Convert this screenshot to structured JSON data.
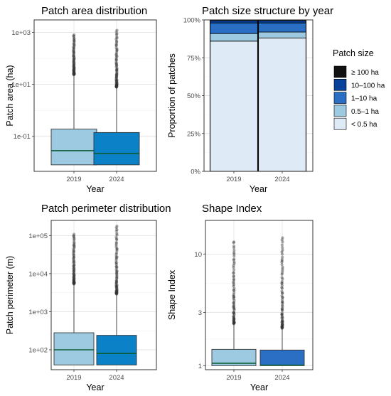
{
  "chart_data": [
    {
      "id": "area",
      "type": "box",
      "title": "Patch area distribution",
      "xlabel": "Year",
      "ylabel": "Patch area (ha)",
      "scale": "log10",
      "ylim": [
        0.0045,
        3000
      ],
      "yticks": [
        0.1,
        10,
        1000
      ],
      "yticklabels": [
        "1e-01",
        "1e+01",
        "1e+03"
      ],
      "categories": [
        "2019",
        "2024"
      ],
      "colors": [
        "#9ecae1",
        "#0b82c8"
      ],
      "boxes": [
        {
          "lower_whisker": 0.008,
          "q1": 0.008,
          "median": 0.028,
          "q3": 0.19,
          "upper_whisker": 24,
          "outlier_range": [
            24,
            800
          ]
        },
        {
          "lower_whisker": 0.008,
          "q1": 0.008,
          "median": 0.022,
          "q3": 0.14,
          "upper_whisker": 8,
          "outlier_range": [
            8,
            1200
          ]
        }
      ]
    },
    {
      "id": "structure",
      "type": "bar",
      "stacked": true,
      "title": "Patch size structure by year",
      "xlabel": "Year",
      "ylabel": "Proportion of patches",
      "ylim": [
        0,
        1
      ],
      "yticks": [
        0,
        0.25,
        0.5,
        0.75,
        1
      ],
      "yticklabels": [
        "0%",
        "25%",
        "50%",
        "75%",
        "100%"
      ],
      "categories": [
        "2019",
        "2024"
      ],
      "legend": {
        "title": "Patch size",
        "position": "right"
      },
      "series": [
        {
          "name": "< 0.5 ha",
          "color": "#deebf7",
          "values": [
            0.86,
            0.88
          ]
        },
        {
          "name": "0.5–1 ha",
          "color": "#9ecae1",
          "values": [
            0.05,
            0.04
          ]
        },
        {
          "name": "1–10 ha",
          "color": "#2a6fc4",
          "values": [
            0.07,
            0.06
          ]
        },
        {
          "name": "10–100 ha",
          "color": "#08419b",
          "values": [
            0.015,
            0.015
          ]
        },
        {
          "name": "≥ 100 ha",
          "color": "#111111",
          "values": [
            0.005,
            0.005
          ]
        }
      ]
    },
    {
      "id": "perimeter",
      "type": "box",
      "title": "Patch perimeter distribution",
      "xlabel": "Year",
      "ylabel": "Patch perimeter (m)",
      "scale": "log10",
      "ylim": [
        30,
        250000
      ],
      "yticks": [
        100,
        1000,
        10000,
        100000
      ],
      "yticklabels": [
        "1e+02",
        "1e+03",
        "1e+04",
        "1e+05"
      ],
      "categories": [
        "2019",
        "2024"
      ],
      "colors": [
        "#9ecae1",
        "#0b82c8"
      ],
      "boxes": [
        {
          "lower_whisker": 40,
          "q1": 40,
          "median": 100,
          "q3": 280,
          "upper_whisker": 5500,
          "outlier_range": [
            5500,
            110000
          ]
        },
        {
          "lower_whisker": 40,
          "q1": 40,
          "median": 80,
          "q3": 240,
          "upper_whisker": 3000,
          "outlier_range": [
            3000,
            180000
          ]
        }
      ]
    },
    {
      "id": "shape",
      "type": "box",
      "title": "Shape Index",
      "xlabel": "Year",
      "ylabel": "Shape Index",
      "scale": "log10",
      "ylim": [
        0.92,
        20
      ],
      "yticks": [
        1,
        3,
        10
      ],
      "yticklabels": [
        "1",
        "3",
        "10"
      ],
      "categories": [
        "2019",
        "2024"
      ],
      "colors": [
        "#9ecae1",
        "#2a6fc4"
      ],
      "boxes": [
        {
          "lower_whisker": 1.0,
          "q1": 1.0,
          "median": 1.05,
          "q3": 1.4,
          "upper_whisker": 2.4,
          "outlier_range": [
            2.4,
            13
          ]
        },
        {
          "lower_whisker": 1.0,
          "q1": 1.0,
          "median": 1.01,
          "q3": 1.38,
          "upper_whisker": 2.2,
          "outlier_range": [
            2.2,
            14
          ]
        }
      ]
    }
  ]
}
